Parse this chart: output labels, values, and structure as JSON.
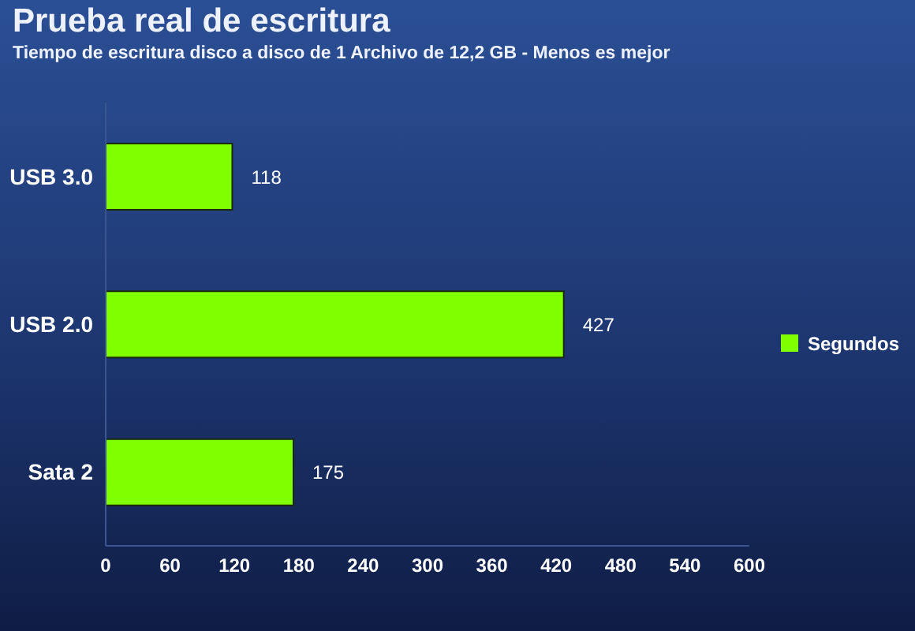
{
  "chart_data": {
    "type": "bar",
    "orientation": "horizontal",
    "title": "Prueba real de escritura",
    "subtitle": "Tiempo de escritura disco a disco de 1 Archivo de 12,2 GB - Menos es mejor",
    "categories": [
      "USB 3.0",
      "USB 2.0",
      "Sata 2"
    ],
    "series": [
      {
        "name": "Segundos",
        "color": "#7fff00",
        "values": [
          118,
          427,
          175
        ]
      }
    ],
    "xlim": [
      0,
      600
    ],
    "xticks": [
      0,
      60,
      120,
      180,
      240,
      300,
      360,
      420,
      480,
      540,
      600
    ],
    "data_labels": true,
    "legend": "right",
    "grid": false
  }
}
